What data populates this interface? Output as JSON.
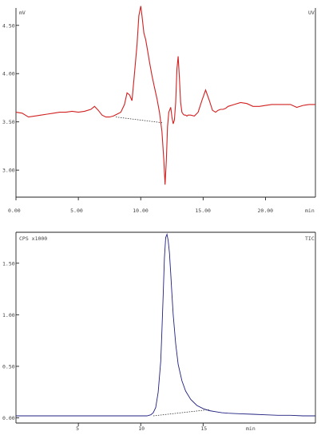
{
  "chart_data": [
    {
      "type": "line",
      "title": "",
      "corner_left": "mV",
      "corner_right": "UV",
      "xlabel": "min",
      "ylabel": "",
      "xlim": [
        0,
        24
      ],
      "ylim": [
        2.72,
        4.68
      ],
      "x_ticks": [
        0,
        5,
        10,
        15,
        20
      ],
      "x_tick_labels": [
        "0.00",
        "5.00",
        "10.00",
        "15.00",
        "20.00"
      ],
      "y_ticks": [
        3.0,
        3.5,
        4.0,
        4.5
      ],
      "y_tick_labels": [
        "3.00",
        "3.50",
        "4.00",
        "4.50"
      ],
      "series": [
        {
          "color": "#d22020",
          "x": [
            0.0,
            0.5,
            1.0,
            1.5,
            2.0,
            2.5,
            3.0,
            3.5,
            4.0,
            4.5,
            5.0,
            5.5,
            6.0,
            6.3,
            6.6,
            6.9,
            7.2,
            7.5,
            7.8,
            8.1,
            8.4,
            8.7,
            8.9,
            9.1,
            9.3,
            9.5,
            9.7,
            9.85,
            10.0,
            10.1,
            10.25,
            10.4,
            10.55,
            10.7,
            10.9,
            11.1,
            11.3,
            11.5,
            11.7,
            11.85,
            11.95,
            12.05,
            12.15,
            12.25,
            12.4,
            12.5,
            12.6,
            12.7,
            12.8,
            12.9,
            13.0,
            13.1,
            13.2,
            13.3,
            13.4,
            13.5,
            13.6,
            13.7,
            13.8,
            14.0,
            14.3,
            14.6,
            14.9,
            15.2,
            15.5,
            15.75,
            16.0,
            16.2,
            16.4,
            16.6,
            16.8,
            17.0,
            17.5,
            18.0,
            18.5,
            19.0,
            19.5,
            20.0,
            20.5,
            21.0,
            21.5,
            22.0,
            22.5,
            23.0,
            23.5,
            24.0
          ],
          "y": [
            3.6,
            3.59,
            3.55,
            3.56,
            3.57,
            3.58,
            3.59,
            3.6,
            3.6,
            3.61,
            3.6,
            3.61,
            3.63,
            3.66,
            3.62,
            3.57,
            3.55,
            3.55,
            3.56,
            3.58,
            3.6,
            3.68,
            3.8,
            3.78,
            3.72,
            4.0,
            4.3,
            4.6,
            4.7,
            4.6,
            4.42,
            4.35,
            4.24,
            4.12,
            3.98,
            3.86,
            3.74,
            3.6,
            3.4,
            3.1,
            2.85,
            3.1,
            3.45,
            3.6,
            3.65,
            3.55,
            3.48,
            3.52,
            3.7,
            4.05,
            4.18,
            3.95,
            3.7,
            3.6,
            3.58,
            3.57,
            3.57,
            3.56,
            3.57,
            3.57,
            3.56,
            3.6,
            3.72,
            3.83,
            3.72,
            3.62,
            3.6,
            3.62,
            3.63,
            3.63,
            3.64,
            3.66,
            3.68,
            3.7,
            3.69,
            3.66,
            3.66,
            3.67,
            3.68,
            3.68,
            3.68,
            3.68,
            3.65,
            3.67,
            3.68,
            3.68
          ]
        }
      ],
      "baseline": {
        "color": "#333333",
        "x": [
          8.0,
          11.8
        ],
        "y": [
          3.55,
          3.49
        ]
      }
    },
    {
      "type": "line",
      "title": "",
      "corner_left": "CPS x1000",
      "corner_right": "TIC",
      "xlabel": "min",
      "ylabel": "",
      "xlim": [
        0,
        24
      ],
      "ylim": [
        -0.05,
        1.8
      ],
      "x_ticks": [
        5,
        10,
        15
      ],
      "x_tick_labels": [
        "5",
        "10",
        "15"
      ],
      "y_ticks": [
        0.0,
        0.5,
        1.0,
        1.5
      ],
      "y_tick_labels": [
        "0.00",
        "0.50",
        "1.00",
        "1.50"
      ],
      "series": [
        {
          "color": "#202080",
          "x": [
            0,
            1,
            2,
            3,
            4,
            5,
            6,
            7,
            8,
            9,
            10,
            10.5,
            10.8,
            11.0,
            11.2,
            11.4,
            11.6,
            11.7,
            11.8,
            11.9,
            12.0,
            12.1,
            12.2,
            12.3,
            12.4,
            12.5,
            12.6,
            12.8,
            13.0,
            13.3,
            13.6,
            14.0,
            14.5,
            15.0,
            15.5,
            16.0,
            16.5,
            17,
            18,
            19,
            20,
            21,
            22,
            23,
            24
          ],
          "y": [
            0.02,
            0.02,
            0.02,
            0.02,
            0.02,
            0.02,
            0.02,
            0.02,
            0.02,
            0.02,
            0.02,
            0.02,
            0.03,
            0.05,
            0.1,
            0.25,
            0.55,
            0.85,
            1.2,
            1.55,
            1.75,
            1.78,
            1.72,
            1.6,
            1.4,
            1.2,
            1.0,
            0.72,
            0.52,
            0.36,
            0.26,
            0.18,
            0.12,
            0.09,
            0.07,
            0.06,
            0.05,
            0.045,
            0.04,
            0.035,
            0.03,
            0.025,
            0.025,
            0.02,
            0.02
          ]
        }
      ],
      "baseline": {
        "color": "#333333",
        "x": [
          11.0,
          15.5
        ],
        "y": [
          0.02,
          0.08
        ]
      }
    }
  ]
}
